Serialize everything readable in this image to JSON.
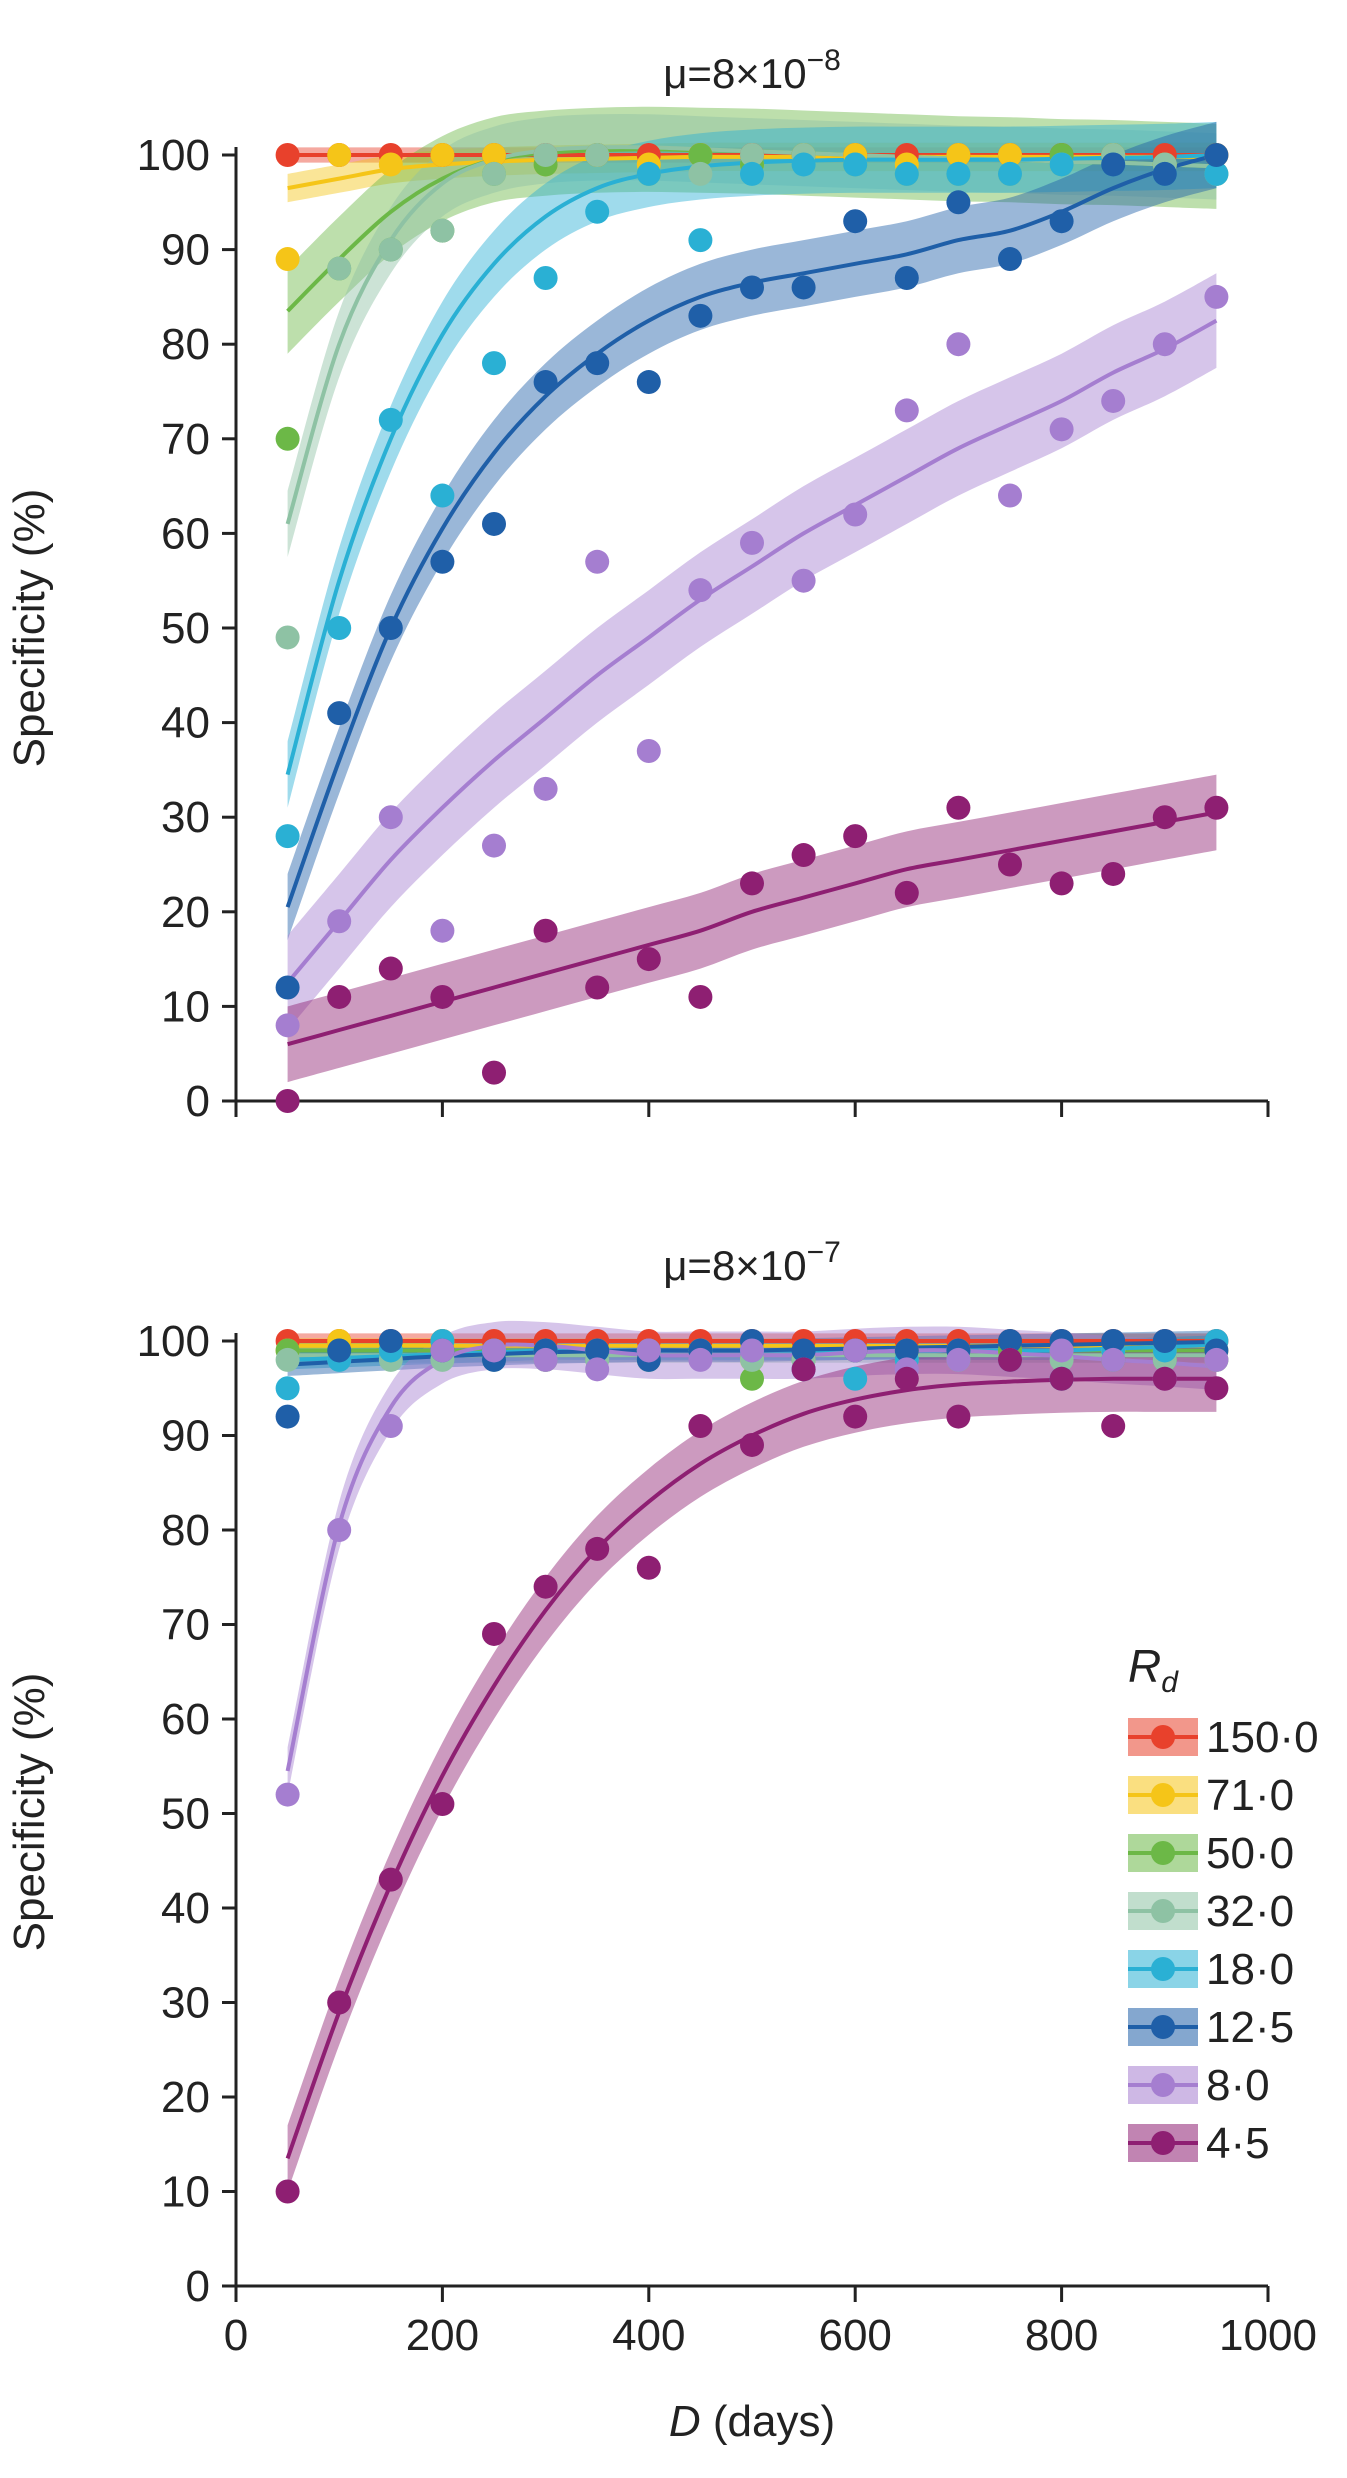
{
  "chart_data": [
    {
      "type": "scatter",
      "title": "μ=8×10⁻⁸",
      "title_base": "μ=8×10",
      "title_exp": "−8",
      "xlabel": "",
      "ylabel": "Specificity (%)",
      "xlim": [
        0,
        1000
      ],
      "ylim": [
        0,
        100
      ],
      "x_ticks": [
        0,
        200,
        400,
        600,
        800,
        1000
      ],
      "x_tick_labels": [],
      "y_ticks": [
        0,
        10,
        20,
        30,
        40,
        50,
        60,
        70,
        80,
        90,
        100
      ],
      "y_tick_labels": [
        "0",
        "10",
        "20",
        "30",
        "40",
        "50",
        "60",
        "70",
        "80",
        "90",
        "100"
      ],
      "x": [
        50,
        100,
        150,
        200,
        250,
        300,
        350,
        400,
        450,
        500,
        550,
        600,
        650,
        700,
        750,
        800,
        850,
        900,
        950
      ],
      "series": [
        {
          "name": "150·0",
          "color": "#e8412c",
          "values": [
            100,
            100,
            100,
            100,
            100,
            100,
            100,
            100,
            100,
            100,
            100,
            100,
            100,
            100,
            100,
            100,
            100,
            100,
            100
          ],
          "fit": [
            100,
            100,
            100,
            100,
            100,
            100,
            100,
            100,
            100,
            100,
            100,
            100,
            100,
            100,
            100,
            100,
            100,
            100,
            100
          ],
          "band": 0.8
        },
        {
          "name": "71·0",
          "color": "#f5c518",
          "values": [
            89,
            100,
            99,
            100,
            100,
            99,
            100,
            99,
            100,
            99,
            100,
            100,
            99,
            100,
            100,
            99,
            100,
            99,
            100
          ],
          "fit": [
            96.5,
            97.5,
            98.5,
            99,
            99.3,
            99.5,
            99.6,
            99.7,
            99.8,
            99.8,
            99.8,
            99.8,
            99.8,
            99.8,
            99.8,
            99.8,
            99.8,
            99.8,
            99.8
          ],
          "band": 1.5
        },
        {
          "name": "50·0",
          "color": "#6cb847",
          "values": [
            70,
            88,
            90,
            92,
            98,
            99,
            100,
            98,
            100,
            99,
            100,
            99,
            98,
            98,
            98,
            100,
            100,
            99,
            98
          ],
          "fit": [
            83.5,
            89,
            94,
            97.5,
            99.5,
            100.2,
            100.5,
            100.6,
            100.5,
            100.4,
            100.2,
            100,
            99.8,
            99.6,
            99.5,
            99.3,
            99.2,
            99,
            98.8
          ],
          "band": 4.5
        },
        {
          "name": "32·0",
          "color": "#8ec2a4",
          "values": [
            49,
            88,
            90,
            92,
            98,
            100,
            100,
            98,
            98,
            100,
            100,
            99,
            98,
            98,
            98,
            99,
            100,
            99,
            98
          ],
          "fit": [
            61,
            80,
            91,
            97,
            99.5,
            100.5,
            100.8,
            100.8,
            100.6,
            100.4,
            100.2,
            100,
            99.8,
            99.6,
            99.5,
            99.3,
            99.2,
            99,
            98.8
          ],
          "band": 3.5
        },
        {
          "name": "18·0",
          "color": "#2ab0d4",
          "values": [
            28,
            50,
            72,
            64,
            78,
            87,
            94,
            98,
            91,
            98,
            99,
            99,
            98,
            98,
            98,
            99,
            99,
            98,
            98
          ],
          "fit": [
            34.5,
            55,
            70,
            81,
            88.5,
            93.5,
            96.5,
            98,
            98.8,
            99.2,
            99.4,
            99.5,
            99.5,
            99.5,
            99.5,
            99.6,
            99.7,
            99.8,
            100
          ],
          "band": 3.5
        },
        {
          "name": "12·5",
          "color": "#1f5fa8",
          "values": [
            12,
            41,
            50,
            57,
            61,
            76,
            78,
            76,
            83,
            86,
            86,
            93,
            87,
            95,
            89,
            93,
            99,
            98,
            100
          ],
          "fit": [
            20.5,
            36,
            50,
            60.5,
            68.5,
            74.5,
            79,
            82.5,
            85,
            86.5,
            87.5,
            88.5,
            89.5,
            91,
            92,
            94,
            96.5,
            98.5,
            100
          ],
          "band": 3.5
        },
        {
          "name": "8·0",
          "color": "#a57ed0",
          "values": [
            8,
            19,
            30,
            18,
            27,
            33,
            57,
            37,
            54,
            59,
            55,
            62,
            73,
            80,
            64,
            71,
            74,
            80,
            85
          ],
          "fit": [
            12.5,
            19,
            25.5,
            31,
            36,
            40.5,
            45,
            49,
            53,
            56.5,
            60,
            63,
            66,
            69,
            71.5,
            74,
            77,
            79.5,
            82.5
          ],
          "band": 5
        },
        {
          "name": "4·5",
          "color": "#8e1f72",
          "values": [
            0,
            11,
            14,
            11,
            3,
            18,
            12,
            15,
            11,
            23,
            26,
            28,
            22,
            31,
            25,
            23,
            24,
            30,
            31
          ],
          "fit": [
            6,
            7.5,
            9,
            10.5,
            12,
            13.5,
            15,
            16.5,
            18,
            20,
            21.5,
            23,
            24.5,
            25.5,
            26.5,
            27.5,
            28.5,
            29.5,
            30.5
          ],
          "band": 4
        }
      ]
    },
    {
      "type": "scatter",
      "title": "μ=8×10⁻⁷",
      "title_base": "μ=8×10",
      "title_exp": "−7",
      "xlabel_italic": "D",
      "xlabel": " (days)",
      "ylabel": "Specificity (%)",
      "xlim": [
        0,
        1000
      ],
      "ylim": [
        0,
        100
      ],
      "x_ticks": [
        0,
        200,
        400,
        600,
        800,
        1000
      ],
      "x_tick_labels": [
        "0",
        "200",
        "400",
        "600",
        "800",
        "1000"
      ],
      "y_ticks": [
        0,
        10,
        20,
        30,
        40,
        50,
        60,
        70,
        80,
        90,
        100
      ],
      "y_tick_labels": [
        "0",
        "10",
        "20",
        "30",
        "40",
        "50",
        "60",
        "70",
        "80",
        "90",
        "100"
      ],
      "x": [
        50,
        100,
        150,
        200,
        250,
        300,
        350,
        400,
        450,
        500,
        550,
        600,
        650,
        700,
        750,
        800,
        850,
        900,
        950
      ],
      "series": [
        {
          "name": "150·0",
          "color": "#e8412c",
          "values": [
            100,
            100,
            100,
            100,
            100,
            100,
            100,
            100,
            100,
            100,
            100,
            100,
            100,
            100,
            100,
            100,
            100,
            100,
            100
          ],
          "fit": [
            100,
            100,
            100,
            100,
            100,
            100,
            100,
            100,
            100,
            100,
            100,
            100,
            100,
            100,
            100,
            100,
            100,
            100,
            100
          ],
          "band": 0.8
        },
        {
          "name": "71·0",
          "color": "#f5c518",
          "values": [
            99,
            100,
            99,
            100,
            99,
            99,
            99,
            99,
            99,
            98,
            98,
            99,
            99,
            99,
            99,
            99,
            99,
            99,
            99
          ],
          "fit": [
            99.5,
            99.5,
            99.5,
            99.5,
            99.5,
            99.5,
            99.5,
            99.5,
            99.5,
            99.5,
            99.5,
            99.5,
            99.5,
            99.5,
            99.5,
            99.5,
            99.5,
            99.5,
            99.5
          ],
          "band": 0.8
        },
        {
          "name": "50·0",
          "color": "#6cb847",
          "values": [
            99,
            99,
            99,
            99,
            99,
            98,
            98,
            98,
            99,
            96,
            98,
            99,
            98,
            98,
            99,
            99,
            98,
            98,
            98
          ],
          "fit": [
            99,
            99,
            99,
            99,
            99,
            99,
            99,
            99,
            99,
            99,
            99,
            99,
            99,
            99,
            99,
            99,
            99,
            99,
            99
          ],
          "band": 0.8
        },
        {
          "name": "32·0",
          "color": "#8ec2a4",
          "values": [
            98,
            98,
            98,
            98,
            98,
            98,
            98,
            98,
            99,
            98,
            98,
            99,
            98,
            98,
            98,
            98,
            99,
            98,
            98
          ],
          "fit": [
            98.5,
            98.5,
            98.5,
            98.5,
            98.5,
            98.5,
            98.5,
            98.5,
            98.5,
            98.5,
            98.5,
            98.5,
            98.5,
            98.5,
            98.5,
            98.5,
            98.5,
            98.5,
            98.5
          ],
          "band": 0.8
        },
        {
          "name": "18·0",
          "color": "#2ab0d4",
          "values": [
            95,
            98,
            99,
            100,
            99,
            99,
            99,
            99,
            99,
            99,
            97,
            96,
            98,
            99,
            98,
            96,
            99,
            99,
            100
          ],
          "fit": [
            98,
            98.2,
            98.4,
            98.6,
            98.8,
            99,
            99,
            99,
            99,
            99,
            99,
            99,
            99,
            99,
            99,
            99,
            99.2,
            99.4,
            99.6
          ],
          "band": 1
        },
        {
          "name": "12·5",
          "color": "#1f5fa8",
          "values": [
            92,
            99,
            100,
            99,
            98,
            99,
            99,
            98,
            99,
            100,
            99,
            99,
            99,
            99,
            100,
            100,
            100,
            100,
            99
          ],
          "fit": [
            97.5,
            97.8,
            98.1,
            98.4,
            98.6,
            98.8,
            98.9,
            99,
            99,
            99,
            99.1,
            99.2,
            99.3,
            99.4,
            99.5,
            99.6,
            99.7,
            99.8,
            99.9
          ],
          "band": 1.2
        },
        {
          "name": "8·0",
          "color": "#a57ed0",
          "values": [
            52,
            80,
            91,
            99,
            99,
            98,
            97,
            99,
            98,
            99,
            97,
            99,
            97,
            98,
            98,
            99,
            98,
            96,
            98
          ],
          "fit": [
            54.5,
            80.5,
            93,
            98,
            99.5,
            99.5,
            99,
            98.5,
            98.5,
            98.5,
            98.5,
            98.8,
            99,
            99,
            98.7,
            98.4,
            98,
            97.7,
            97.3
          ],
          "band": 2.5
        },
        {
          "name": "4·5",
          "color": "#8e1f72",
          "values": [
            10,
            30,
            43,
            51,
            69,
            74,
            78,
            76,
            91,
            89,
            97,
            92,
            96,
            92,
            98,
            96,
            91,
            96,
            95
          ],
          "fit": [
            13.5,
            29,
            42.5,
            54,
            63.5,
            71.5,
            78,
            83,
            87,
            90,
            92.3,
            93.8,
            94.8,
            95.4,
            95.7,
            95.9,
            96,
            96,
            96
          ],
          "band": 3.5
        }
      ]
    }
  ],
  "legend": {
    "title_main": "R",
    "title_sub": "d",
    "placement": "right",
    "items": [
      "150·0",
      "71·0",
      "50·0",
      "32·0",
      "18·0",
      "12·5",
      "8·0",
      "4·5"
    ]
  }
}
